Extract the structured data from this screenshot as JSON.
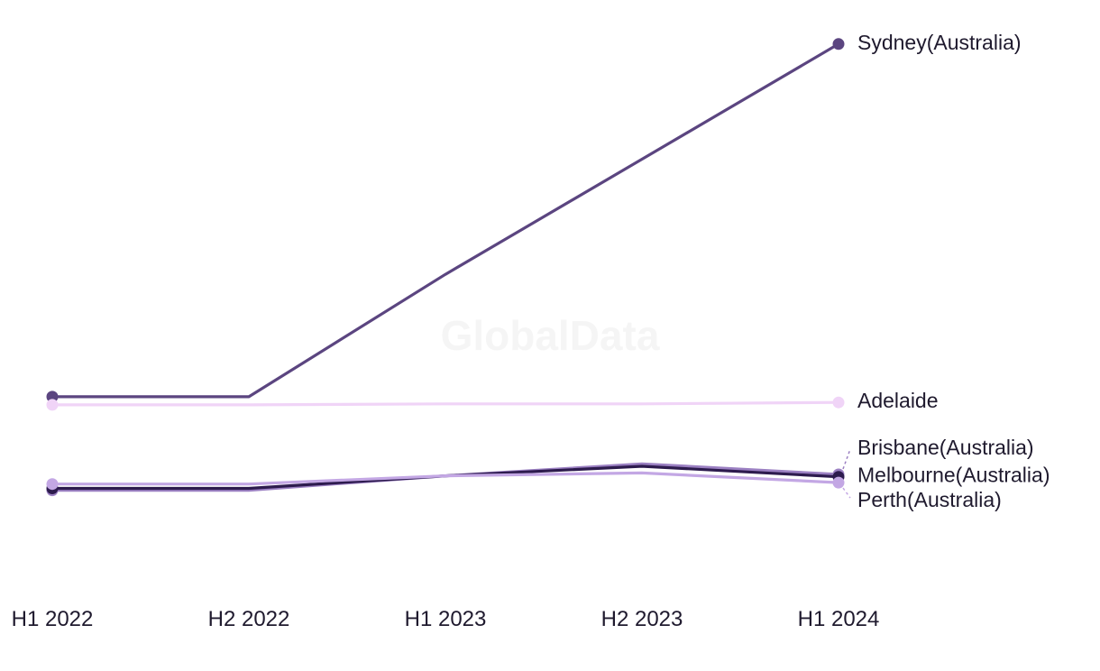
{
  "watermark": "GlobalData",
  "chart_data": {
    "type": "line",
    "title": "",
    "xlabel": "",
    "ylabel": "",
    "grid": false,
    "categories": [
      "H1 2022",
      "H2 2022",
      "H1 2023",
      "H2 2023",
      "H1 2024"
    ],
    "ylim": [
      0,
      100
    ],
    "series": [
      {
        "key": "sydney",
        "name": "Sydney(Australia)",
        "color": "#5b4580",
        "values": [
          39.5,
          39.5,
          65,
          89,
          113
        ],
        "label_side": "center",
        "markers": [
          0,
          4
        ]
      },
      {
        "key": "adelaide",
        "name": "Adelaide",
        "color": "#f0d4f7",
        "values": [
          37.8,
          37.8,
          38,
          38,
          38.3
        ],
        "label_side": "right",
        "markers": [
          0,
          4
        ]
      },
      {
        "key": "brisbane",
        "name": "Brisbane(Australia)",
        "color": "#9b80c2",
        "values": [
          20,
          20,
          23,
          25.5,
          23.3
        ],
        "label_side": "up",
        "markers": [
          0,
          4
        ]
      },
      {
        "key": "melbourne",
        "name": "Melbourne(Australia)",
        "color": "#2d1b4e",
        "values": [
          20.4,
          20.4,
          23,
          25,
          22.8
        ],
        "label_side": "right",
        "markers": [
          0,
          4
        ]
      },
      {
        "key": "perth",
        "name": "Perth(Australia)",
        "color": "#c3a7e4",
        "values": [
          21.3,
          21.3,
          23,
          23.6,
          21.6
        ],
        "label_side": "down",
        "markers": [
          0,
          4
        ]
      }
    ]
  }
}
